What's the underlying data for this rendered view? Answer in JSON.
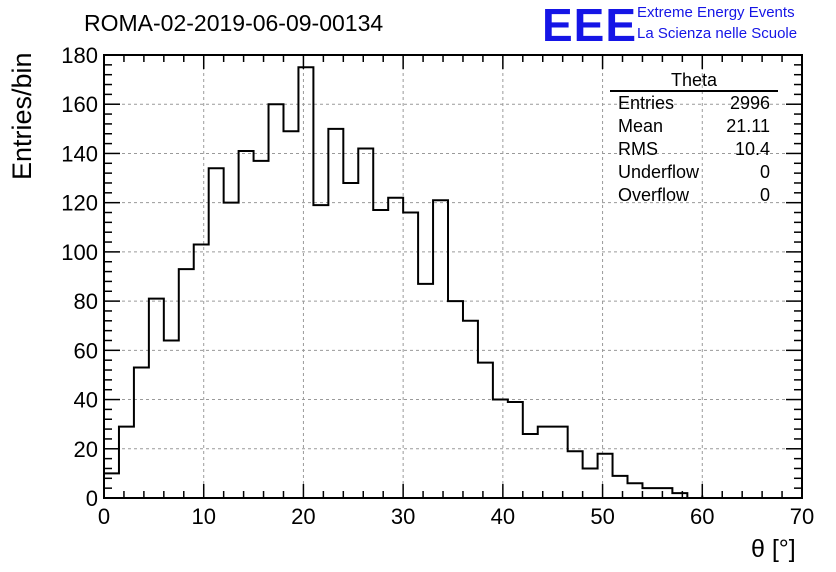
{
  "title": "ROMA-02-2019-06-09-00134",
  "logo": {
    "mark": "EEE",
    "line1": "Extreme Energy Events",
    "line2": "La Scienza nelle Scuole",
    "color": "#1515e6"
  },
  "stats": {
    "title": "Theta",
    "rows": [
      {
        "label": "Entries",
        "value": "2996"
      },
      {
        "label": "Mean",
        "value": "21.11"
      },
      {
        "label": "RMS",
        "value": "10.4"
      },
      {
        "label": "Underflow",
        "value": "0"
      },
      {
        "label": "Overflow",
        "value": "0"
      }
    ]
  },
  "chart_data": {
    "type": "bar",
    "histogram_style": "step",
    "title": "ROMA-02-2019-06-09-00134",
    "xlabel": "θ [°]",
    "ylabel": "Entries/bin",
    "xlim": [
      0,
      70
    ],
    "ylim": [
      0,
      180
    ],
    "grid": true,
    "bin_width": 1.5,
    "x_ticks": [
      0,
      10,
      20,
      30,
      40,
      50,
      60,
      70
    ],
    "y_ticks": [
      0,
      20,
      40,
      60,
      80,
      100,
      120,
      140,
      160,
      180
    ],
    "bin_edges": [
      0,
      1.5,
      3,
      4.5,
      6,
      7.5,
      9,
      10.5,
      12,
      13.5,
      15,
      16.5,
      18,
      19.5,
      21,
      22.5,
      24,
      25.5,
      27,
      28.5,
      30,
      31.5,
      33,
      34.5,
      36,
      37.5,
      39,
      40.5,
      42,
      43.5,
      45,
      46.5,
      48,
      49.5,
      51,
      52.5,
      54,
      55.5,
      57,
      58.5,
      60
    ],
    "values": [
      10,
      29,
      53,
      81,
      64,
      93,
      103,
      134,
      120,
      141,
      137,
      160,
      149,
      175,
      119,
      150,
      128,
      142,
      117,
      122,
      116,
      87,
      121,
      80,
      72,
      55,
      40,
      39,
      26,
      29,
      29,
      19,
      12,
      18,
      9,
      6,
      4,
      4,
      2,
      0,
      1
    ]
  }
}
